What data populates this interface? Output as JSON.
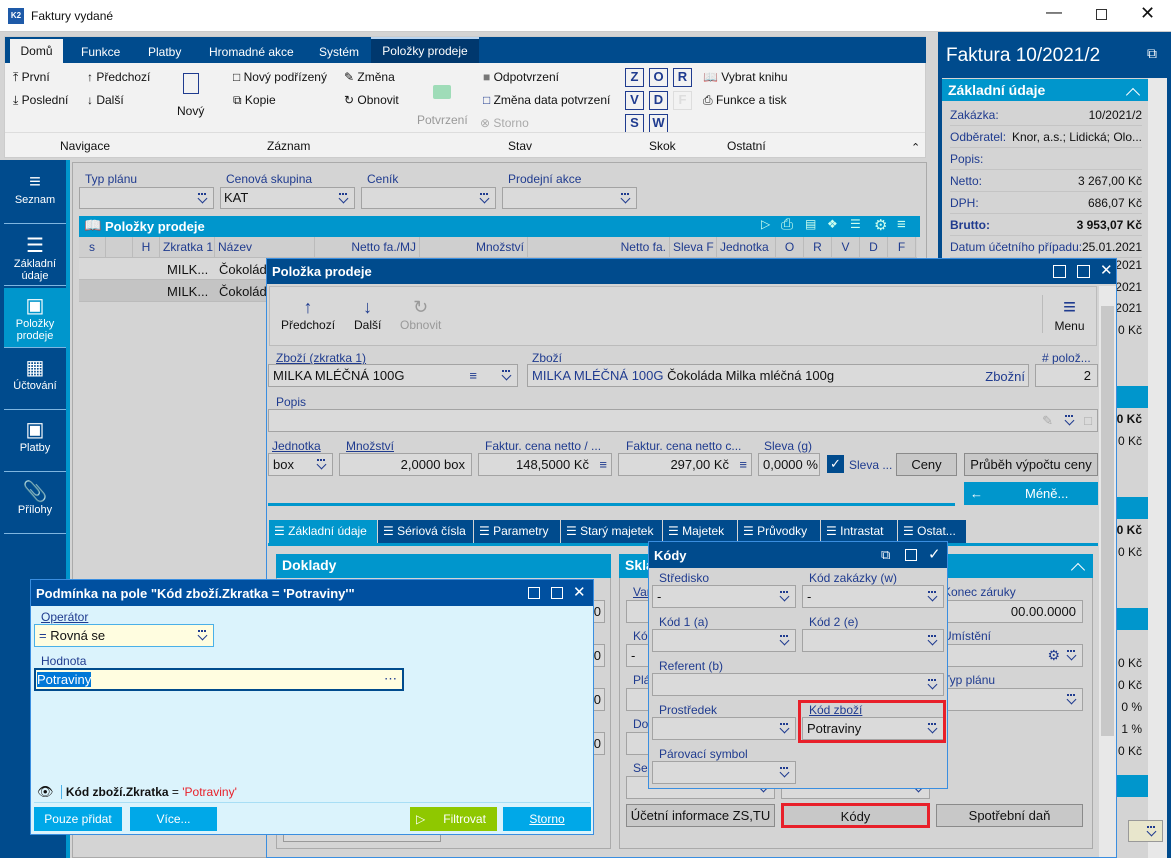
{
  "window": {
    "title": "Faktury vydané",
    "logo": "K2"
  },
  "ribbon": {
    "tabs": [
      "Domů",
      "Funkce",
      "Platby",
      "Hromadné akce",
      "Systém",
      "Položky prodeje"
    ],
    "navigace": {
      "prvni": "První",
      "predchozi": "Předchozí",
      "posledni": "Poslední",
      "dalsi": "Další",
      "group": "Navigace"
    },
    "zaznam": {
      "novy": "Nový",
      "novy_podrizeny": "Nový podřízený",
      "kopie": "Kopie",
      "zmena": "Změna",
      "obnovit": "Obnovit",
      "group": "Záznam"
    },
    "stav": {
      "potvrzeni": "Potvrzení",
      "odpotvrzeni": "Odpotvrzení",
      "zmena_data": "Změna data potvrzení",
      "storno": "Storno",
      "group": "Stav"
    },
    "skok": {
      "keys": [
        "Z",
        "O",
        "R",
        "V",
        "D",
        "F",
        "S",
        "W"
      ],
      "group": "Skok"
    },
    "ostatni": {
      "vybrat_knihu": "Vybrat knihu",
      "funkce_tisk": "Funkce a tisk",
      "group": "Ostatní"
    }
  },
  "sidebar": {
    "items": [
      {
        "label": "Seznam",
        "icon": "hamburger-icon"
      },
      {
        "label": "Základní údaje",
        "icon": "list-icon"
      },
      {
        "label": "Položky prodeje",
        "icon": "box-icon",
        "active": true
      },
      {
        "label": "Účtování",
        "icon": "calculator-icon"
      },
      {
        "label": "Platby",
        "icon": "box-icon"
      },
      {
        "label": "Přílohy",
        "icon": "paperclip-icon"
      }
    ]
  },
  "filters": [
    {
      "label": "Typ plánu",
      "value": ""
    },
    {
      "label": "Cenová skupina",
      "value": "KAT"
    },
    {
      "label": "Ceník",
      "value": ""
    },
    {
      "label": "Prodejní akce",
      "value": ""
    }
  ],
  "table": {
    "title": "Položky prodeje",
    "columns": [
      "s",
      "",
      "H",
      "Zkratka 1",
      "Název",
      "Netto fa./MJ",
      "Množství",
      "Netto fa.",
      "Sleva F",
      "Jednotka",
      "O",
      "R",
      "V",
      "D",
      "F"
    ],
    "rows": [
      [
        "MILK...",
        "Čokoládа"
      ],
      [
        "MILK...",
        "Čokoládа"
      ]
    ]
  },
  "right_panel": {
    "title": "Faktura 10/2021/2",
    "section": "Základní údaje",
    "rows": [
      {
        "label": "Zakázka:",
        "value": "10/2021/2"
      },
      {
        "label": "Odběratel:",
        "value": "Knor, a.s.; Lidická; Olo..."
      },
      {
        "label": "Popis:",
        "value": ""
      },
      {
        "label": "Netto:",
        "value": "3 267,00 Kč"
      },
      {
        "label": "DPH:",
        "value": "686,07 Kč"
      },
      {
        "label": "Brutto:",
        "value": "3 953,07 Kč",
        "bold": true
      },
      {
        "label": "Datum účetního případu:",
        "value": "25.01.2021"
      }
    ],
    "fragments": [
      "2021",
      "2021",
      "2021",
      "0 Kč",
      "0 Kč",
      "0 Kč",
      "0 Kč",
      "0 Kč",
      "0 Kč",
      "0 Kč",
      "0 %",
      "1 %",
      "0 Kč"
    ]
  },
  "item_dialog": {
    "title": "Položka prodeje",
    "toolbar": {
      "predchozi": "Předchozí",
      "dalsi": "Další",
      "obnovit": "Obnovit",
      "menu": "Menu"
    },
    "zbozi_zkratka": {
      "label": "Zboží (zkratka 1)",
      "value": "MILKA MLÉČNÁ 100G"
    },
    "zbozi": {
      "label": "Zboží",
      "code": "MILKA MLÉČNÁ 100G",
      "name": "Čokoláda Milka mléčná 100g",
      "suffix": "Zbožní"
    },
    "pocet": {
      "label": "# polož...",
      "value": "2"
    },
    "popis": {
      "label": "Popis",
      "value": ""
    },
    "jednotka": {
      "label": "Jednotka",
      "value": "box"
    },
    "mnozstvi": {
      "label": "Množství",
      "value": "2,0000 box"
    },
    "cena_mj": {
      "label": "Faktur. cena netto / ...",
      "value": "148,5000 Kč"
    },
    "cena_c": {
      "label": "Faktur. cena netto c...",
      "value": "297,00 Kč"
    },
    "sleva": {
      "label": "Sleva (g)",
      "value": "0,0000 %"
    },
    "sleva_check": {
      "label": "Sleva ...",
      "checked": true
    },
    "ceny_btn": "Ceny",
    "prubeh_btn": "Průběh výpočtu ceny",
    "mene_btn": "Méně...",
    "tabs": [
      "Základní údaje",
      "Sériová čísla",
      "Parametry",
      "Starý majetek",
      "Majetek",
      "Průvodky",
      "Intrastat",
      "Ostat..."
    ],
    "doklady": "Doklady",
    "sklad": "Skla",
    "sklad_fields": {
      "konec_zaruky": {
        "label": "Konec záruky",
        "value": "00.00.0000"
      },
      "umisteni": {
        "label": "Umístění",
        "value": ""
      },
      "typ_planu": {
        "label": "Typ plánu",
        "value": ""
      },
      "var": "Var",
      "ko": "Kó",
      "kod_value": "-",
      "pla": "Plá",
      "do": "Do",
      "ser": "Ser"
    },
    "doklady_fragments": [
      "0",
      "0",
      "0",
      "0"
    ],
    "buttons": {
      "ucetni": "Účetní informace ZS,TU",
      "kody": "Kódy",
      "spotrebni": "Spotřební daň"
    }
  },
  "kody_popup": {
    "title": "Kódy",
    "fields": [
      {
        "label": "Středisko",
        "value": "-"
      },
      {
        "label": "Kód zakázky (w)",
        "value": "-"
      },
      {
        "label": "Kód 1 (a)",
        "value": ""
      },
      {
        "label": "Kód 2 (e)",
        "value": ""
      },
      {
        "label": "Referent (b)",
        "value": ""
      },
      {
        "label": "Prostředek",
        "value": ""
      },
      {
        "label": "Kód zboží",
        "value": "Potraviny"
      },
      {
        "label": "Párovací symbol",
        "value": ""
      }
    ]
  },
  "condition_dialog": {
    "title": "Podmínka na pole \"Kód zboží.Zkratka = 'Potraviny'\"",
    "operator": {
      "label": "Operátor",
      "value": "Rovná se"
    },
    "hodnota": {
      "label": "Hodnota",
      "value": "Potraviny"
    },
    "preview": {
      "field": "Kód zboží.Zkratka",
      "op": "=",
      "value": "'Potraviny'"
    },
    "buttons": {
      "pouze_pridat": "Pouze přidat",
      "vice": "Více...",
      "filtrovat": "Filtrovat",
      "storno": "Storno"
    }
  },
  "colors": {
    "dark_blue": "#004b8d",
    "cyan": "#0096cc",
    "highlight_red": "#e8202a",
    "green": "#8fc800"
  }
}
